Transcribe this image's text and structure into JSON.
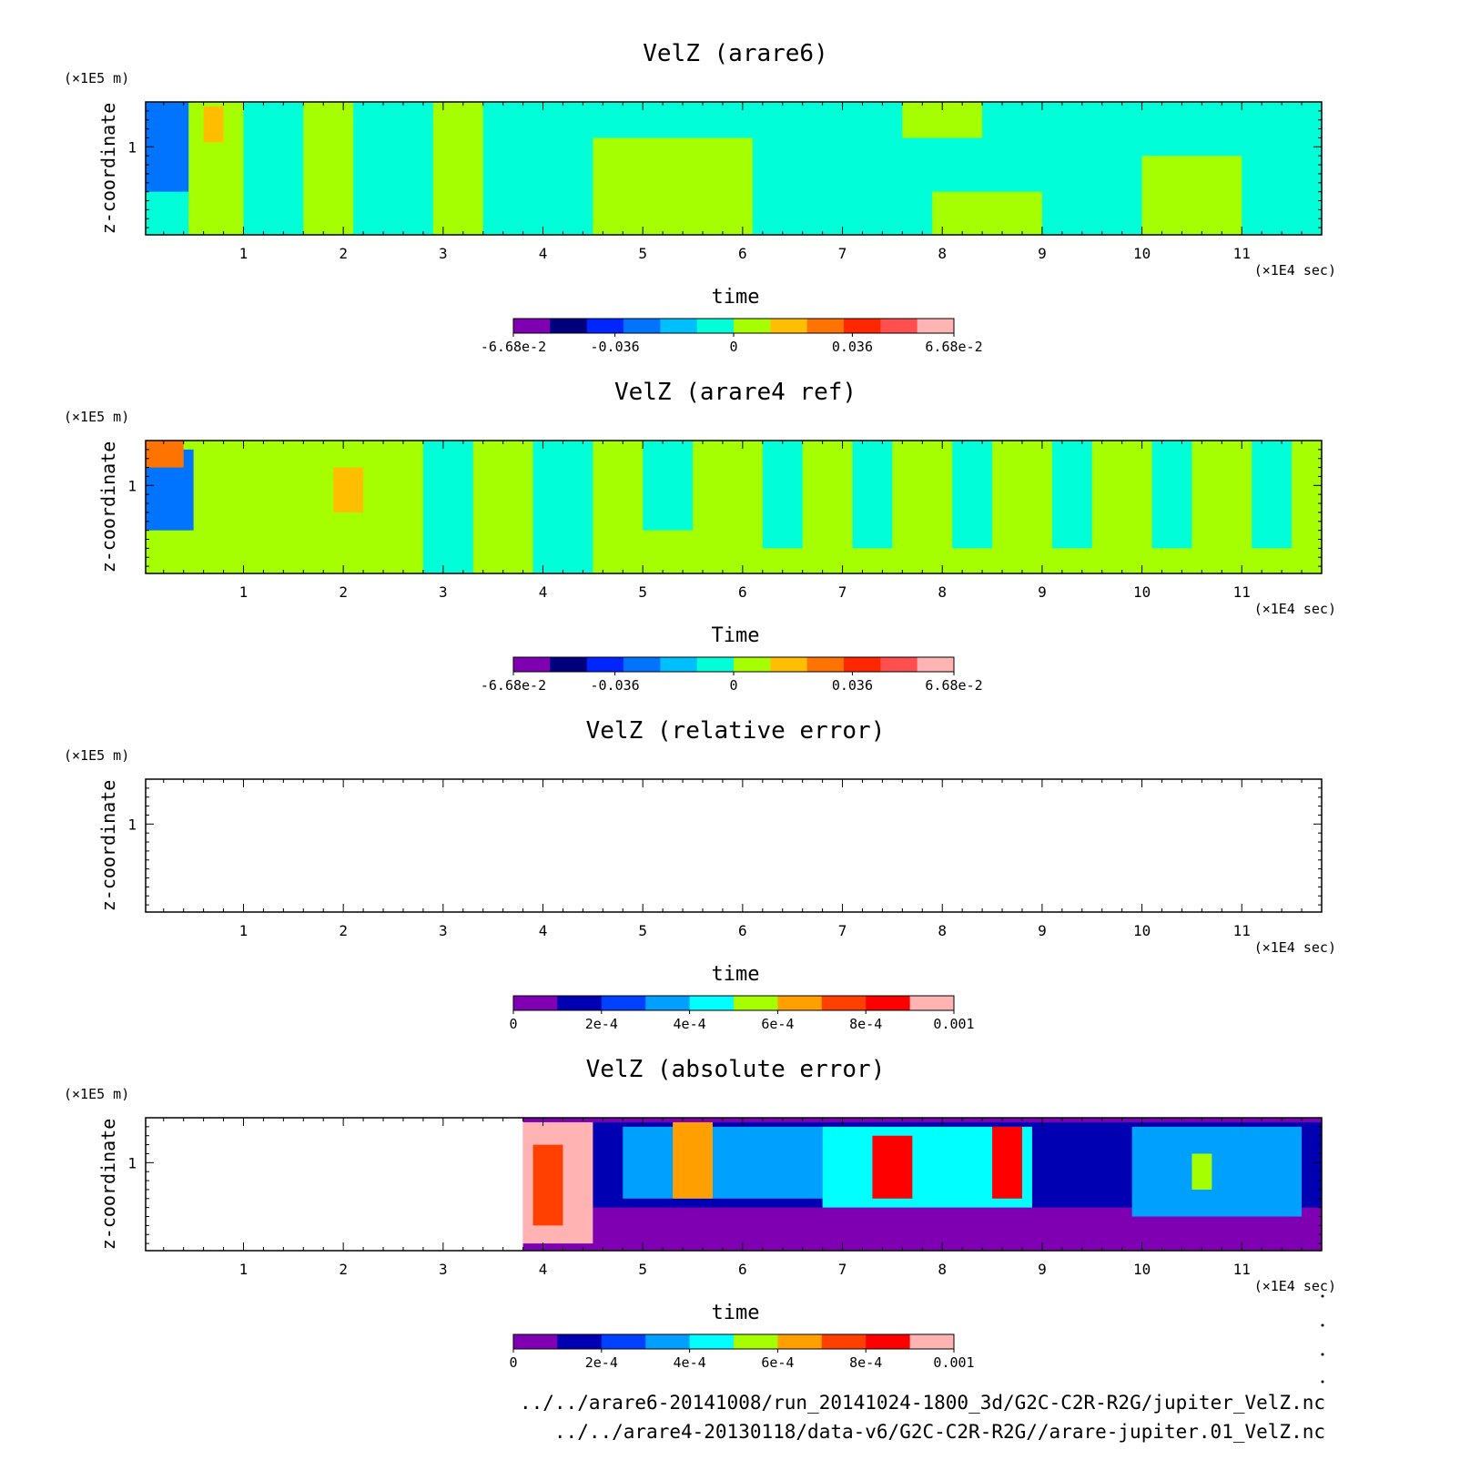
{
  "colors": {
    "velz_scale": [
      "#7f00b2",
      "#00007f",
      "#0026ff",
      "#0073ff",
      "#00bfff",
      "#00ffd9",
      "#a6ff00",
      "#ffbf00",
      "#ff7300",
      "#ff2600",
      "#ff4f4f",
      "#ffb3b3"
    ],
    "error_scale": [
      "#7f00b2",
      "#0000b2",
      "#0040ff",
      "#00a0ff",
      "#00ffff",
      "#a6ff00",
      "#ffa000",
      "#ff4000",
      "#ff0000",
      "#ffb3b3"
    ]
  },
  "panels": [
    {
      "id": "arare6",
      "title": "VelZ (arare6)",
      "y_unit": "(×1E5 m)",
      "ylabel": "z-coordinate",
      "x_unit": "(×1E4 sec)",
      "xlabel": "time",
      "colorbar_labels": [
        "-6.68e-2",
        "-0.036",
        "0",
        "0.036",
        "6.68e-2"
      ]
    },
    {
      "id": "arare4",
      "title": "VelZ (arare4 ref)",
      "y_unit": "(×1E5 m)",
      "ylabel": "z-coordinate",
      "x_unit": "(×1E4 sec)",
      "xlabel": "Time",
      "colorbar_labels": [
        "-6.68e-2",
        "-0.036",
        "0",
        "0.036",
        "6.68e-2"
      ]
    },
    {
      "id": "relerr",
      "title": "VelZ (relative error)",
      "y_unit": "(×1E5 m)",
      "ylabel": "z-coordinate",
      "x_unit": "(×1E4 sec)",
      "xlabel": "time",
      "colorbar_labels": [
        "0",
        "2e-4",
        "4e-4",
        "6e-4",
        "8e-4",
        "0.001"
      ]
    },
    {
      "id": "abserr",
      "title": "VelZ (absolute error)",
      "y_unit": "(×1E5 m)",
      "ylabel": "z-coordinate",
      "x_unit": "(×1E4 sec)",
      "xlabel": "time",
      "colorbar_labels": [
        "0",
        "2e-4",
        "4e-4",
        "6e-4",
        "8e-4",
        "0.001"
      ]
    }
  ],
  "chart_data": [
    {
      "type": "heatmap",
      "title": "VelZ (arare6)",
      "xlabel": "time",
      "x_unit": "(×1E4 sec)",
      "xlim": [
        0.02,
        11.8
      ],
      "x_ticks": [
        "1",
        "2",
        "3",
        "4",
        "5",
        "6",
        "7",
        "8",
        "9",
        "10",
        "11"
      ],
      "ylabel": "z-coordinate",
      "y_unit": "(×1E5 m)",
      "ylim": [
        0.02,
        1.5
      ],
      "y_ticks": [
        "1"
      ],
      "colorbar": {
        "range": [
          -0.0668,
          0.0668
        ],
        "levels": 12,
        "labels": [
          "-6.68e-2",
          "-0.036",
          "0",
          "0.036",
          "6.68e-2"
        ]
      },
      "regions": [
        {
          "x": [
            0.02,
            11.8
          ],
          "y": [
            0.02,
            1.5
          ],
          "level": 5
        },
        {
          "x": [
            0.45,
            1.0
          ],
          "y": [
            0.02,
            1.5
          ],
          "level": 6
        },
        {
          "x": [
            1.6,
            2.1
          ],
          "y": [
            0.02,
            1.5
          ],
          "level": 6
        },
        {
          "x": [
            2.9,
            3.4
          ],
          "y": [
            0.02,
            1.5
          ],
          "level": 6
        },
        {
          "x": [
            4.5,
            6.1
          ],
          "y": [
            0.02,
            1.1
          ],
          "level": 6
        },
        {
          "x": [
            7.6,
            8.4
          ],
          "y": [
            1.1,
            1.5
          ],
          "level": 6
        },
        {
          "x": [
            7.9,
            9.0
          ],
          "y": [
            0.02,
            0.5
          ],
          "level": 6
        },
        {
          "x": [
            10.0,
            11.0
          ],
          "y": [
            0.02,
            0.9
          ],
          "level": 6
        },
        {
          "x": [
            0.6,
            0.8
          ],
          "y": [
            1.05,
            1.45
          ],
          "level": 7
        },
        {
          "x": [
            0.02,
            0.45
          ],
          "y": [
            0.5,
            1.5
          ],
          "level": 3
        }
      ]
    },
    {
      "type": "heatmap",
      "title": "VelZ (arare4 ref)",
      "xlabel": "Time",
      "x_unit": "(×1E4 sec)",
      "xlim": [
        0.02,
        11.8
      ],
      "x_ticks": [
        "1",
        "2",
        "3",
        "4",
        "5",
        "6",
        "7",
        "8",
        "9",
        "10",
        "11"
      ],
      "ylabel": "z-coordinate",
      "y_unit": "(×1E5 m)",
      "ylim": [
        0.02,
        1.5
      ],
      "y_ticks": [
        "1"
      ],
      "colorbar": {
        "range": [
          -0.0668,
          0.0668
        ],
        "levels": 12,
        "labels": [
          "-6.68e-2",
          "-0.036",
          "0",
          "0.036",
          "6.68e-2"
        ]
      },
      "regions": [
        {
          "x": [
            0.02,
            11.8
          ],
          "y": [
            0.02,
            1.5
          ],
          "level": 6
        },
        {
          "x": [
            2.8,
            3.3
          ],
          "y": [
            0.02,
            1.5
          ],
          "level": 5
        },
        {
          "x": [
            3.9,
            4.5
          ],
          "y": [
            0.02,
            1.5
          ],
          "level": 5
        },
        {
          "x": [
            5.0,
            5.5
          ],
          "y": [
            0.5,
            1.5
          ],
          "level": 5
        },
        {
          "x": [
            6.2,
            6.6
          ],
          "y": [
            0.3,
            1.5
          ],
          "level": 5
        },
        {
          "x": [
            7.1,
            7.5
          ],
          "y": [
            0.3,
            1.5
          ],
          "level": 5
        },
        {
          "x": [
            8.1,
            8.5
          ],
          "y": [
            0.3,
            1.5
          ],
          "level": 5
        },
        {
          "x": [
            9.1,
            9.5
          ],
          "y": [
            0.3,
            1.5
          ],
          "level": 5
        },
        {
          "x": [
            10.1,
            10.5
          ],
          "y": [
            0.3,
            1.5
          ],
          "level": 5
        },
        {
          "x": [
            11.1,
            11.5
          ],
          "y": [
            0.3,
            1.5
          ],
          "level": 5
        },
        {
          "x": [
            1.9,
            2.2
          ],
          "y": [
            0.7,
            1.2
          ],
          "level": 7
        },
        {
          "x": [
            0.02,
            0.5
          ],
          "y": [
            0.5,
            1.4
          ],
          "level": 3
        },
        {
          "x": [
            0.02,
            0.4
          ],
          "y": [
            1.2,
            1.5
          ],
          "level": 8
        }
      ]
    },
    {
      "type": "heatmap",
      "title": "VelZ (relative error)",
      "xlabel": "time",
      "x_unit": "(×1E4 sec)",
      "xlim": [
        0.02,
        11.8
      ],
      "x_ticks": [
        "1",
        "2",
        "3",
        "4",
        "5",
        "6",
        "7",
        "8",
        "9",
        "10",
        "11"
      ],
      "ylabel": "z-coordinate",
      "y_unit": "(×1E5 m)",
      "ylim": [
        0.02,
        1.5
      ],
      "y_ticks": [
        "1"
      ],
      "colorbar": {
        "range": [
          0,
          0.001
        ],
        "levels": 10,
        "labels": [
          "0",
          "2e-4",
          "4e-4",
          "6e-4",
          "8e-4",
          "0.001"
        ]
      },
      "regions": []
    },
    {
      "type": "heatmap",
      "title": "VelZ (absolute error)",
      "xlabel": "time",
      "x_unit": "(×1E4 sec)",
      "xlim": [
        0.02,
        11.8
      ],
      "x_ticks": [
        "1",
        "2",
        "3",
        "4",
        "5",
        "6",
        "7",
        "8",
        "9",
        "10",
        "11"
      ],
      "ylabel": "z-coordinate",
      "y_unit": "(×1E5 m)",
      "ylim": [
        0.02,
        1.5
      ],
      "y_ticks": [
        "1"
      ],
      "colorbar": {
        "range": [
          0,
          0.001
        ],
        "levels": 10,
        "labels": [
          "0",
          "2e-4",
          "4e-4",
          "6e-4",
          "8e-4",
          "0.001"
        ]
      },
      "regions": [
        {
          "x": [
            3.8,
            11.8
          ],
          "y": [
            0.02,
            1.5
          ],
          "level": 0
        },
        {
          "x": [
            4.5,
            11.8
          ],
          "y": [
            0.5,
            1.45
          ],
          "level": 1
        },
        {
          "x": [
            4.8,
            6.8
          ],
          "y": [
            0.6,
            1.4
          ],
          "level": 3
        },
        {
          "x": [
            6.8,
            8.9
          ],
          "y": [
            0.5,
            1.4
          ],
          "level": 4
        },
        {
          "x": [
            9.9,
            11.6
          ],
          "y": [
            0.4,
            1.4
          ],
          "level": 3
        },
        {
          "x": [
            5.3,
            5.7
          ],
          "y": [
            0.6,
            1.45
          ],
          "level": 6
        },
        {
          "x": [
            7.3,
            7.7
          ],
          "y": [
            0.6,
            1.3
          ],
          "level": 8
        },
        {
          "x": [
            8.5,
            8.8
          ],
          "y": [
            0.6,
            1.4
          ],
          "level": 8
        },
        {
          "x": [
            10.5,
            10.7
          ],
          "y": [
            0.7,
            1.1
          ],
          "level": 5
        },
        {
          "x": [
            3.8,
            4.5
          ],
          "y": [
            0.1,
            1.45
          ],
          "level": 9
        },
        {
          "x": [
            3.9,
            4.2
          ],
          "y": [
            0.3,
            1.2
          ],
          "level": 7
        }
      ]
    }
  ],
  "footer": {
    "path_1": "../../arare6-20141008/run_20141024-1800_3d/G2C-C2R-R2G/jupiter_VelZ.nc",
    "path_2": "../../arare4-20130118/data-v6/G2C-C2R-R2G//arare-jupiter.01_VelZ.nc"
  }
}
